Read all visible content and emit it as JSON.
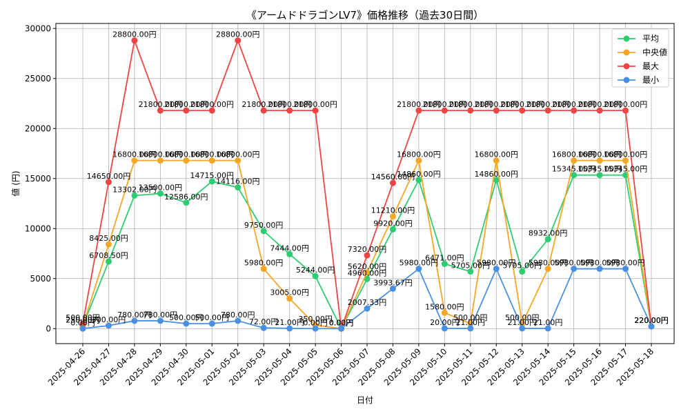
{
  "chart_data": {
    "type": "line",
    "title": "《アームドドラゴンLV7》価格推移（過去30日間）",
    "xlabel": "日付",
    "ylabel": "値 (円)",
    "ylim": [
      -1500,
      30500
    ],
    "yticks": [
      0,
      5000,
      10000,
      15000,
      20000,
      25000,
      30000
    ],
    "ytick_labels": [
      "0",
      "5000",
      "10000",
      "15000",
      "20000",
      "25000",
      "30000"
    ],
    "grid": true,
    "legend_position": "top-right",
    "categories": [
      "2025-04-26",
      "2025-04-27",
      "2025-04-28",
      "2025-04-29",
      "2025-04-30",
      "2025-05-01",
      "2025-05-02",
      "2025-05-03",
      "2025-05-04",
      "2025-05-05",
      "2025-05-06",
      "2025-05-07",
      "2025-05-08",
      "2025-05-09",
      "2025-05-10",
      "2025-05-11",
      "2025-05-12",
      "2025-05-13",
      "2025-05-14",
      "2025-05-15",
      "2025-05-16",
      "2025-05-17",
      "2025-05-18"
    ],
    "series": [
      {
        "name": "平均",
        "color": "#2ecc71",
        "values": [
          250,
          6708.5,
          13302,
          13500,
          12586,
          14715,
          14116,
          9750,
          7444,
          5244,
          0,
          4960,
          9920,
          14860,
          6471,
          5705,
          14860,
          5705,
          8932,
          15345,
          15345,
          15345,
          220
        ],
        "labels": [
          "250.00円",
          "6708.50円",
          "13302.00円",
          "13500.00円",
          "12586.00円",
          "14715.00円",
          "14116.00円",
          "9750.00円",
          "7444.00円",
          "5244.00円",
          "0.00円",
          "4960.00円",
          "9920.00円",
          "14860.00円",
          "6471.00円",
          "5705.00円",
          "14860.00円",
          "5705.00円",
          "8932.00円",
          "15345.00円",
          "15345.00円",
          "15345.00円",
          "220.00円"
        ]
      },
      {
        "name": "中央値",
        "color": "#f5a623",
        "values": [
          250,
          8425,
          16800,
          16800,
          16800,
          16800,
          16800,
          5980,
          3005,
          350,
          0,
          5620,
          11210,
          16800,
          1580,
          500,
          16800,
          500,
          5980,
          16800,
          16800,
          16800,
          220
        ],
        "labels": [
          "250.00円",
          "8425.00円",
          "16800.00円",
          "16800.00円",
          "16800.00円",
          "16800.00円",
          "16800.00円",
          "5980.00円",
          "3005.00円",
          "350.00円",
          "0.00円",
          "5620.00円",
          "11210.00円",
          "16800.00円",
          "1580.00円",
          "500.00円",
          "16800.00円",
          "500.00円",
          "5980.00円",
          "16800.00円",
          "16800.00円",
          "16800.00円",
          "220.00円"
        ]
      },
      {
        "name": "最大",
        "color": "#ef4444",
        "values": [
          500,
          14650,
          28800,
          21800,
          21800,
          21800,
          28800,
          21800,
          21800,
          21800,
          0,
          7320,
          14560,
          21800,
          21800,
          21800,
          21800,
          21800,
          21800,
          21800,
          21800,
          21800,
          220
        ],
        "labels": [
          "500.00円",
          "14650.00円",
          "28800.00円",
          "21800.00円",
          "21800.00円",
          "21800.00円",
          "28800.00円",
          "21800.00円",
          "21800.00円",
          "21800.00円",
          "0.00円",
          "7320.00円",
          "14560.00円",
          "21800.00円",
          "21800.00円",
          "21800.00円",
          "21800.00円",
          "21800.00円",
          "21800.00円",
          "21800.00円",
          "21800.00円",
          "21800.00円",
          "220.00円"
        ]
      },
      {
        "name": "最小",
        "color": "#4a90e2",
        "values": [
          0,
          300,
          780,
          780,
          500,
          500,
          780,
          72,
          21,
          0,
          0,
          2007.33,
          3993.67,
          5980,
          20,
          21,
          5980,
          21,
          21,
          5980,
          5980,
          5980,
          220
        ],
        "labels": [
          "0.00円",
          "300.00円",
          "780.00円",
          "780.00円",
          "500.00円",
          "500.00円",
          "780.00円",
          "72.00円",
          "21.00円",
          "0.00円",
          "0.00円",
          "2007.33円",
          "3993.67円",
          "5980.00円",
          "20.00円",
          "21.00円",
          "5980.00円",
          "21.00円",
          "21.00円",
          "5980.00円",
          "5980.00円",
          "5980.00円",
          "220.00円"
        ]
      }
    ]
  }
}
